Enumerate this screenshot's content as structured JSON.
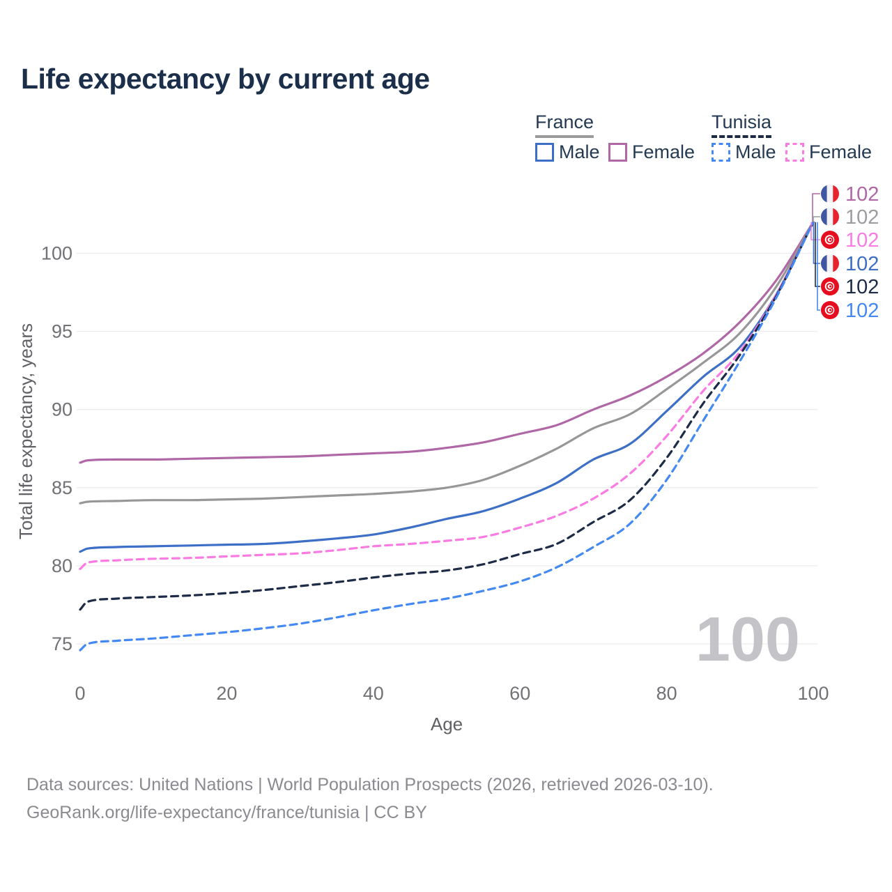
{
  "page": {
    "title": "Life expectancy by current age"
  },
  "legend": {
    "groups": [
      {
        "country": "France",
        "line_style": "solid",
        "underline_color": "#9b9b9b",
        "items": [
          {
            "label": "Male",
            "color": "#3d6fc6"
          },
          {
            "label": "Female",
            "color": "#af67a6"
          }
        ]
      },
      {
        "country": "Tunisia",
        "line_style": "dashed",
        "underline_color": "#1d2b47",
        "items": [
          {
            "label": "Male",
            "color": "#4489f2"
          },
          {
            "label": "Female",
            "color": "#fa7ce2"
          }
        ]
      }
    ]
  },
  "chart_data": {
    "type": "line",
    "title": "Life expectancy by current age",
    "xlabel": "Age",
    "ylabel": "Total life expectancy, years",
    "x_ticks": [
      0,
      20,
      40,
      60,
      80,
      100
    ],
    "y_ticks": [
      75,
      80,
      85,
      90,
      95,
      100
    ],
    "xlim": [
      0,
      100
    ],
    "ylim": [
      74,
      102.5
    ],
    "grid": "horizontal",
    "legend_position": "top-right",
    "watermark": "100",
    "x": [
      0,
      1,
      5,
      10,
      15,
      20,
      25,
      30,
      35,
      40,
      45,
      50,
      55,
      60,
      65,
      70,
      75,
      80,
      85,
      90,
      95,
      100
    ],
    "series": [
      {
        "name": "France Female",
        "country": "france",
        "color": "#af67a6",
        "dash": false,
        "end_label": "102",
        "values": [
          86.6,
          86.75,
          86.8,
          86.8,
          86.85,
          86.9,
          86.95,
          87.0,
          87.1,
          87.2,
          87.3,
          87.55,
          87.9,
          88.45,
          89.0,
          90.0,
          90.9,
          92.1,
          93.6,
          95.6,
          98.3,
          102
        ]
      },
      {
        "name": "France Both sexes",
        "country": "france",
        "color": "#979797",
        "dash": false,
        "end_label": "102",
        "values": [
          84.0,
          84.1,
          84.15,
          84.2,
          84.2,
          84.25,
          84.3,
          84.4,
          84.5,
          84.6,
          84.75,
          85.0,
          85.5,
          86.4,
          87.5,
          88.8,
          89.7,
          91.3,
          93.0,
          94.9,
          97.9,
          102
        ]
      },
      {
        "name": "France Male",
        "country": "france",
        "color": "#3d6fc6",
        "dash": false,
        "end_label": "102",
        "values": [
          80.9,
          81.1,
          81.2,
          81.25,
          81.3,
          81.35,
          81.4,
          81.55,
          81.75,
          82.0,
          82.45,
          83.0,
          83.5,
          84.3,
          85.3,
          86.8,
          87.8,
          89.9,
          92.1,
          94.0,
          97.4,
          102
        ]
      },
      {
        "name": "Tunisia Female",
        "country": "tunisia",
        "color": "#fa7ce2",
        "dash": true,
        "end_label": "102",
        "values": [
          79.8,
          80.2,
          80.35,
          80.45,
          80.5,
          80.6,
          80.7,
          80.8,
          81.0,
          81.25,
          81.4,
          81.6,
          81.85,
          82.45,
          83.2,
          84.3,
          85.9,
          88.3,
          91.2,
          93.7,
          97.4,
          102
        ]
      },
      {
        "name": "Tunisia Both sexes",
        "country": "tunisia",
        "color": "#1d2b47",
        "dash": true,
        "end_label": "102",
        "values": [
          77.2,
          77.7,
          77.9,
          78.0,
          78.1,
          78.25,
          78.45,
          78.7,
          78.95,
          79.25,
          79.5,
          79.7,
          80.1,
          80.75,
          81.4,
          82.8,
          84.2,
          86.9,
          90.4,
          93.5,
          97.3,
          102
        ]
      },
      {
        "name": "Tunisia Male",
        "country": "tunisia",
        "color": "#4489f2",
        "dash": true,
        "end_label": "102",
        "values": [
          74.6,
          75.0,
          75.2,
          75.35,
          75.55,
          75.75,
          76.0,
          76.3,
          76.7,
          77.15,
          77.55,
          77.9,
          78.4,
          79.0,
          79.9,
          81.2,
          82.7,
          85.5,
          89.3,
          93.1,
          97.2,
          102
        ]
      }
    ],
    "end_label_order": [
      "France Female",
      "France Both sexes",
      "Tunisia Female",
      "France Male",
      "Tunisia Both sexes",
      "Tunisia Male"
    ],
    "end_label_color_gray": "#9c9ca1"
  },
  "footer": {
    "line1": "Data sources: United Nations | World Population Prospects (2026, retrieved 2026-03-10).",
    "line2": "GeoRank.org/life-expectancy/france/tunisia | CC BY"
  }
}
